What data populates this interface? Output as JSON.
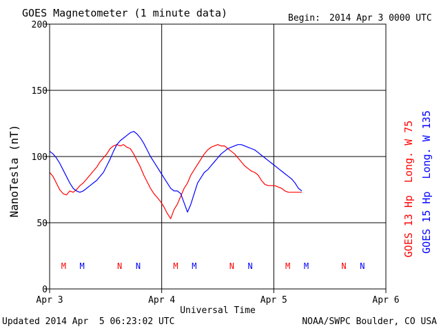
{
  "chart_data": {
    "type": "line",
    "title": "GOES Magnetometer (1 minute data)",
    "begin_label": "Begin:",
    "begin_date": "2014 Apr 3 0000 UTC",
    "xlabel": "Universal Time",
    "ylabel": "NanoTesla (nT)",
    "xlim": [
      0,
      3
    ],
    "ylim": [
      0,
      200
    ],
    "yticks": [
      0,
      50,
      100,
      150,
      200
    ],
    "xticks": [
      {
        "value": 0,
        "label": "Apr 3"
      },
      {
        "value": 1,
        "label": "Apr 4"
      },
      {
        "value": 2,
        "label": "Apr 5"
      },
      {
        "value": 3,
        "label": "Apr 6"
      }
    ],
    "grid": true,
    "series": [
      {
        "name": "GOES 13 Hp  Long. W 75",
        "color": "#ff0000",
        "x": [
          0.0,
          0.03,
          0.06,
          0.09,
          0.12,
          0.15,
          0.18,
          0.21,
          0.24,
          0.27,
          0.3,
          0.33,
          0.36,
          0.39,
          0.42,
          0.45,
          0.48,
          0.51,
          0.54,
          0.57,
          0.6,
          0.63,
          0.66,
          0.69,
          0.72,
          0.75,
          0.78,
          0.81,
          0.84,
          0.87,
          0.9,
          0.93,
          0.96,
          0.99,
          1.02,
          1.05,
          1.08,
          1.11,
          1.14,
          1.17,
          1.2,
          1.23,
          1.26,
          1.29,
          1.32,
          1.35,
          1.38,
          1.41,
          1.44,
          1.47,
          1.5,
          1.53,
          1.56,
          1.59,
          1.62,
          1.65,
          1.68,
          1.71,
          1.74,
          1.77,
          1.8,
          1.83,
          1.86,
          1.89,
          1.92,
          1.95,
          1.98,
          2.01,
          2.04,
          2.07,
          2.1,
          2.13,
          2.16,
          2.19,
          2.22,
          2.25
        ],
        "y": [
          88,
          85,
          80,
          75,
          72,
          71,
          74,
          73,
          75,
          78,
          80,
          83,
          86,
          89,
          92,
          96,
          99,
          102,
          106,
          108,
          109,
          108,
          109,
          107,
          106,
          102,
          97,
          92,
          86,
          81,
          76,
          72,
          69,
          66,
          62,
          57,
          53,
          60,
          64,
          70,
          76,
          80,
          86,
          90,
          94,
          98,
          102,
          105,
          107,
          108,
          109,
          108,
          108,
          106,
          104,
          102,
          99,
          96,
          93,
          91,
          89,
          88,
          86,
          82,
          79,
          78,
          78,
          78,
          77,
          76,
          74,
          73,
          73,
          73,
          73,
          73
        ]
      },
      {
        "name": "GOES 15 Hp  Long. W 135",
        "color": "#0000ff",
        "x": [
          0.0,
          0.03,
          0.06,
          0.09,
          0.12,
          0.15,
          0.18,
          0.21,
          0.24,
          0.27,
          0.3,
          0.33,
          0.36,
          0.39,
          0.42,
          0.45,
          0.48,
          0.51,
          0.54,
          0.57,
          0.6,
          0.63,
          0.66,
          0.69,
          0.72,
          0.75,
          0.78,
          0.81,
          0.84,
          0.87,
          0.9,
          0.93,
          0.96,
          0.99,
          1.02,
          1.05,
          1.08,
          1.11,
          1.14,
          1.17,
          1.2,
          1.23,
          1.26,
          1.29,
          1.32,
          1.35,
          1.38,
          1.41,
          1.44,
          1.47,
          1.5,
          1.53,
          1.56,
          1.59,
          1.62,
          1.65,
          1.68,
          1.71,
          1.74,
          1.77,
          1.8,
          1.83,
          1.86,
          1.89,
          1.92,
          1.95,
          1.98,
          2.01,
          2.04,
          2.07,
          2.1,
          2.13,
          2.16,
          2.19,
          2.22,
          2.25
        ],
        "y": [
          104,
          102,
          99,
          95,
          90,
          85,
          80,
          76,
          74,
          73,
          74,
          76,
          78,
          80,
          82,
          85,
          88,
          93,
          98,
          104,
          109,
          112,
          114,
          116,
          118,
          119,
          117,
          114,
          110,
          105,
          100,
          96,
          92,
          88,
          84,
          80,
          76,
          74,
          74,
          72,
          65,
          58,
          64,
          72,
          80,
          84,
          88,
          90,
          93,
          96,
          99,
          102,
          104,
          106,
          107,
          108,
          109,
          109,
          108,
          107,
          106,
          105,
          103,
          101,
          99,
          97,
          95,
          93,
          91,
          89,
          87,
          85,
          83,
          80,
          76,
          74
        ]
      }
    ],
    "annotations": {
      "rows": [
        {
          "marker": "M",
          "color": "#ff0000",
          "x": [
            0.125,
            1.125,
            2.125
          ]
        },
        {
          "marker": "M",
          "color": "#0000ff",
          "x": [
            0.29,
            1.29,
            2.29
          ]
        },
        {
          "marker": "N",
          "color": "#ff0000",
          "x": [
            0.625,
            1.625,
            2.625
          ]
        },
        {
          "marker": "N",
          "color": "#0000ff",
          "x": [
            0.79,
            1.79,
            2.79
          ]
        }
      ]
    }
  },
  "footer": {
    "updated": "Updated 2014 Apr  5 06:23:02 UTC",
    "credit": "NOAA/SWPC Boulder, CO USA"
  }
}
